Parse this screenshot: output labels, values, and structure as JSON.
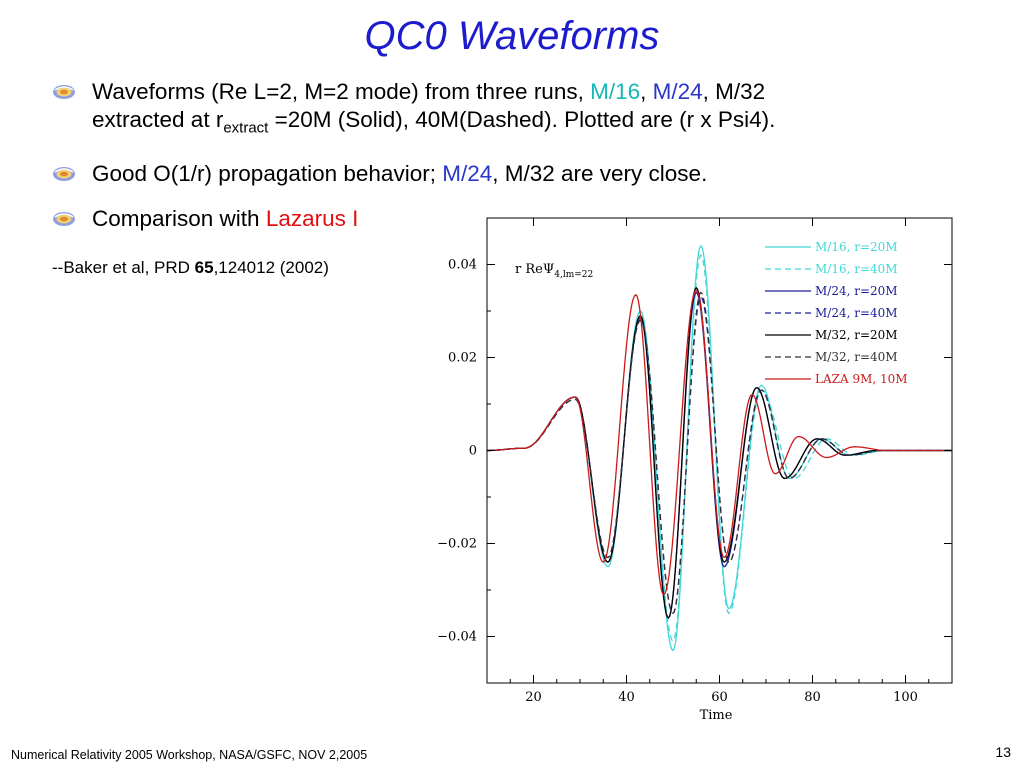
{
  "slide": {
    "title": "QC0 Waveforms",
    "page_number": "13",
    "footer": "Numerical Relativity 2005 Workshop, NASA/GSFC, NOV 2,2005",
    "bullet1": {
      "t1": "Waveforms (Re L=2, M=2 mode) from three runs, ",
      "m16": "M/16",
      "sep1": ", ",
      "m24": "M/24",
      "t2": ", M/32",
      "t3": "extracted at r",
      "sub": "extract",
      "t4": " =20M (Solid), 40M(Dashed). Plotted are (r x Psi4)."
    },
    "bullet2": {
      "t1": "Good O(1/r) propagation behavior; ",
      "m24": "M/24",
      "t2": ", M/32 are very close."
    },
    "bullet3": {
      "t1": "Comparison with ",
      "laz": "Lazarus I"
    },
    "ref": {
      "t1": "--Baker et al, PRD ",
      "vol": "65",
      "t2": ",124012 (2002)"
    }
  },
  "colors": {
    "title": "#1c1ccc",
    "cyan": "#17b8b8",
    "blue": "#2a35c8",
    "red": "#e01010"
  },
  "chart_data": {
    "type": "line",
    "xlabel": "Time",
    "ylabel_prefix": "r ReΨ",
    "ylabel_sub": "4,lm=22",
    "xlim": [
      10,
      110
    ],
    "ylim": [
      -0.05,
      0.05
    ],
    "xticks": [
      20,
      40,
      60,
      80,
      100
    ],
    "yticks": [
      -0.04,
      -0.02,
      0,
      0.02,
      0.04
    ],
    "ytick_labels": [
      "−0.04",
      "−0.02",
      "0",
      "0.02",
      "0.04"
    ],
    "legend_position": "top-right",
    "series": [
      {
        "name": "M/16, r=20M",
        "color": "#40d8d8",
        "dash": "solid",
        "wave": [
          [
            10,
            0
          ],
          [
            18,
            0.0005
          ],
          [
            29,
            0.0115
          ],
          [
            36,
            -0.025
          ],
          [
            43,
            0.03
          ],
          [
            50,
            -0.043
          ],
          [
            56,
            0.044
          ],
          [
            62,
            -0.034
          ],
          [
            69,
            0.014
          ],
          [
            75,
            -0.006
          ],
          [
            82,
            0.0025
          ],
          [
            88,
            -0.001
          ],
          [
            95,
            0
          ],
          [
            110,
            0
          ]
        ]
      },
      {
        "name": "M/16, r=40M",
        "color": "#40d8d8",
        "dash": "dashed",
        "wave": [
          [
            10,
            0
          ],
          [
            18,
            0.0005
          ],
          [
            29,
            0.011
          ],
          [
            36,
            -0.024
          ],
          [
            43,
            0.029
          ],
          [
            50,
            -0.041
          ],
          [
            56,
            0.042
          ],
          [
            62,
            -0.035
          ],
          [
            69,
            0.013
          ],
          [
            76,
            -0.006
          ],
          [
            83,
            0.0025
          ],
          [
            89,
            -0.001
          ],
          [
            96,
            0
          ],
          [
            110,
            0
          ]
        ]
      },
      {
        "name": "M/24, r=20M",
        "color": "#1c1c9a",
        "dash": "solid",
        "wave": [
          [
            10,
            0
          ],
          [
            18,
            0.0005
          ],
          [
            29,
            0.0115
          ],
          [
            36,
            -0.024
          ],
          [
            43,
            0.0285
          ],
          [
            49,
            -0.036
          ],
          [
            55,
            0.034
          ],
          [
            61,
            -0.025
          ],
          [
            68,
            0.0135
          ],
          [
            74,
            -0.006
          ],
          [
            81,
            0.0025
          ],
          [
            87,
            -0.001
          ],
          [
            94,
            0
          ],
          [
            110,
            0
          ]
        ]
      },
      {
        "name": "M/24, r=40M",
        "color": "#1c1c9a",
        "dash": "dashed",
        "wave": [
          [
            10,
            0
          ],
          [
            18,
            0.0005
          ],
          [
            29,
            0.011
          ],
          [
            36,
            -0.023
          ],
          [
            43,
            0.028
          ],
          [
            50,
            -0.035
          ],
          [
            56,
            0.033
          ],
          [
            62,
            -0.024
          ],
          [
            69,
            0.013
          ],
          [
            75,
            -0.006
          ],
          [
            82,
            0.0025
          ],
          [
            88,
            -0.001
          ],
          [
            95,
            0
          ],
          [
            110,
            0
          ]
        ]
      },
      {
        "name": "M/32, r=20M",
        "color": "#000000",
        "dash": "solid",
        "wave": [
          [
            10,
            0
          ],
          [
            18,
            0.0005
          ],
          [
            29,
            0.0115
          ],
          [
            36,
            -0.024
          ],
          [
            43,
            0.029
          ],
          [
            49,
            -0.036
          ],
          [
            55,
            0.035
          ],
          [
            61,
            -0.024
          ],
          [
            68,
            0.0135
          ],
          [
            74,
            -0.006
          ],
          [
            81,
            0.0025
          ],
          [
            87,
            -0.001
          ],
          [
            94,
            0
          ],
          [
            110,
            0
          ]
        ]
      },
      {
        "name": "M/32, r=40M",
        "color": "#333333",
        "dash": "dashed",
        "wave": [
          [
            10,
            0
          ],
          [
            18,
            0.0005
          ],
          [
            29,
            0.011
          ],
          [
            36,
            -0.023
          ],
          [
            43,
            0.028
          ],
          [
            50,
            -0.035
          ],
          [
            56,
            0.034
          ],
          [
            62,
            -0.024
          ],
          [
            69,
            0.013
          ],
          [
            75,
            -0.006
          ],
          [
            82,
            0.0025
          ],
          [
            88,
            -0.001
          ],
          [
            95,
            0
          ],
          [
            110,
            0
          ]
        ]
      },
      {
        "name": "LAZA 9M, 10M",
        "color": "#cc1a1a",
        "dash": "solid",
        "wave": [
          [
            10,
            0
          ],
          [
            18,
            0.0005
          ],
          [
            29,
            0.0115
          ],
          [
            35,
            -0.024
          ],
          [
            42,
            0.0335
          ],
          [
            48,
            -0.031
          ],
          [
            55,
            0.0345
          ],
          [
            61,
            -0.023
          ],
          [
            67,
            0.012
          ],
          [
            72,
            -0.005
          ],
          [
            77,
            0.003
          ],
          [
            83,
            -0.0015
          ],
          [
            89,
            0.0008
          ],
          [
            96,
            0
          ],
          [
            110,
            0
          ]
        ]
      }
    ]
  }
}
